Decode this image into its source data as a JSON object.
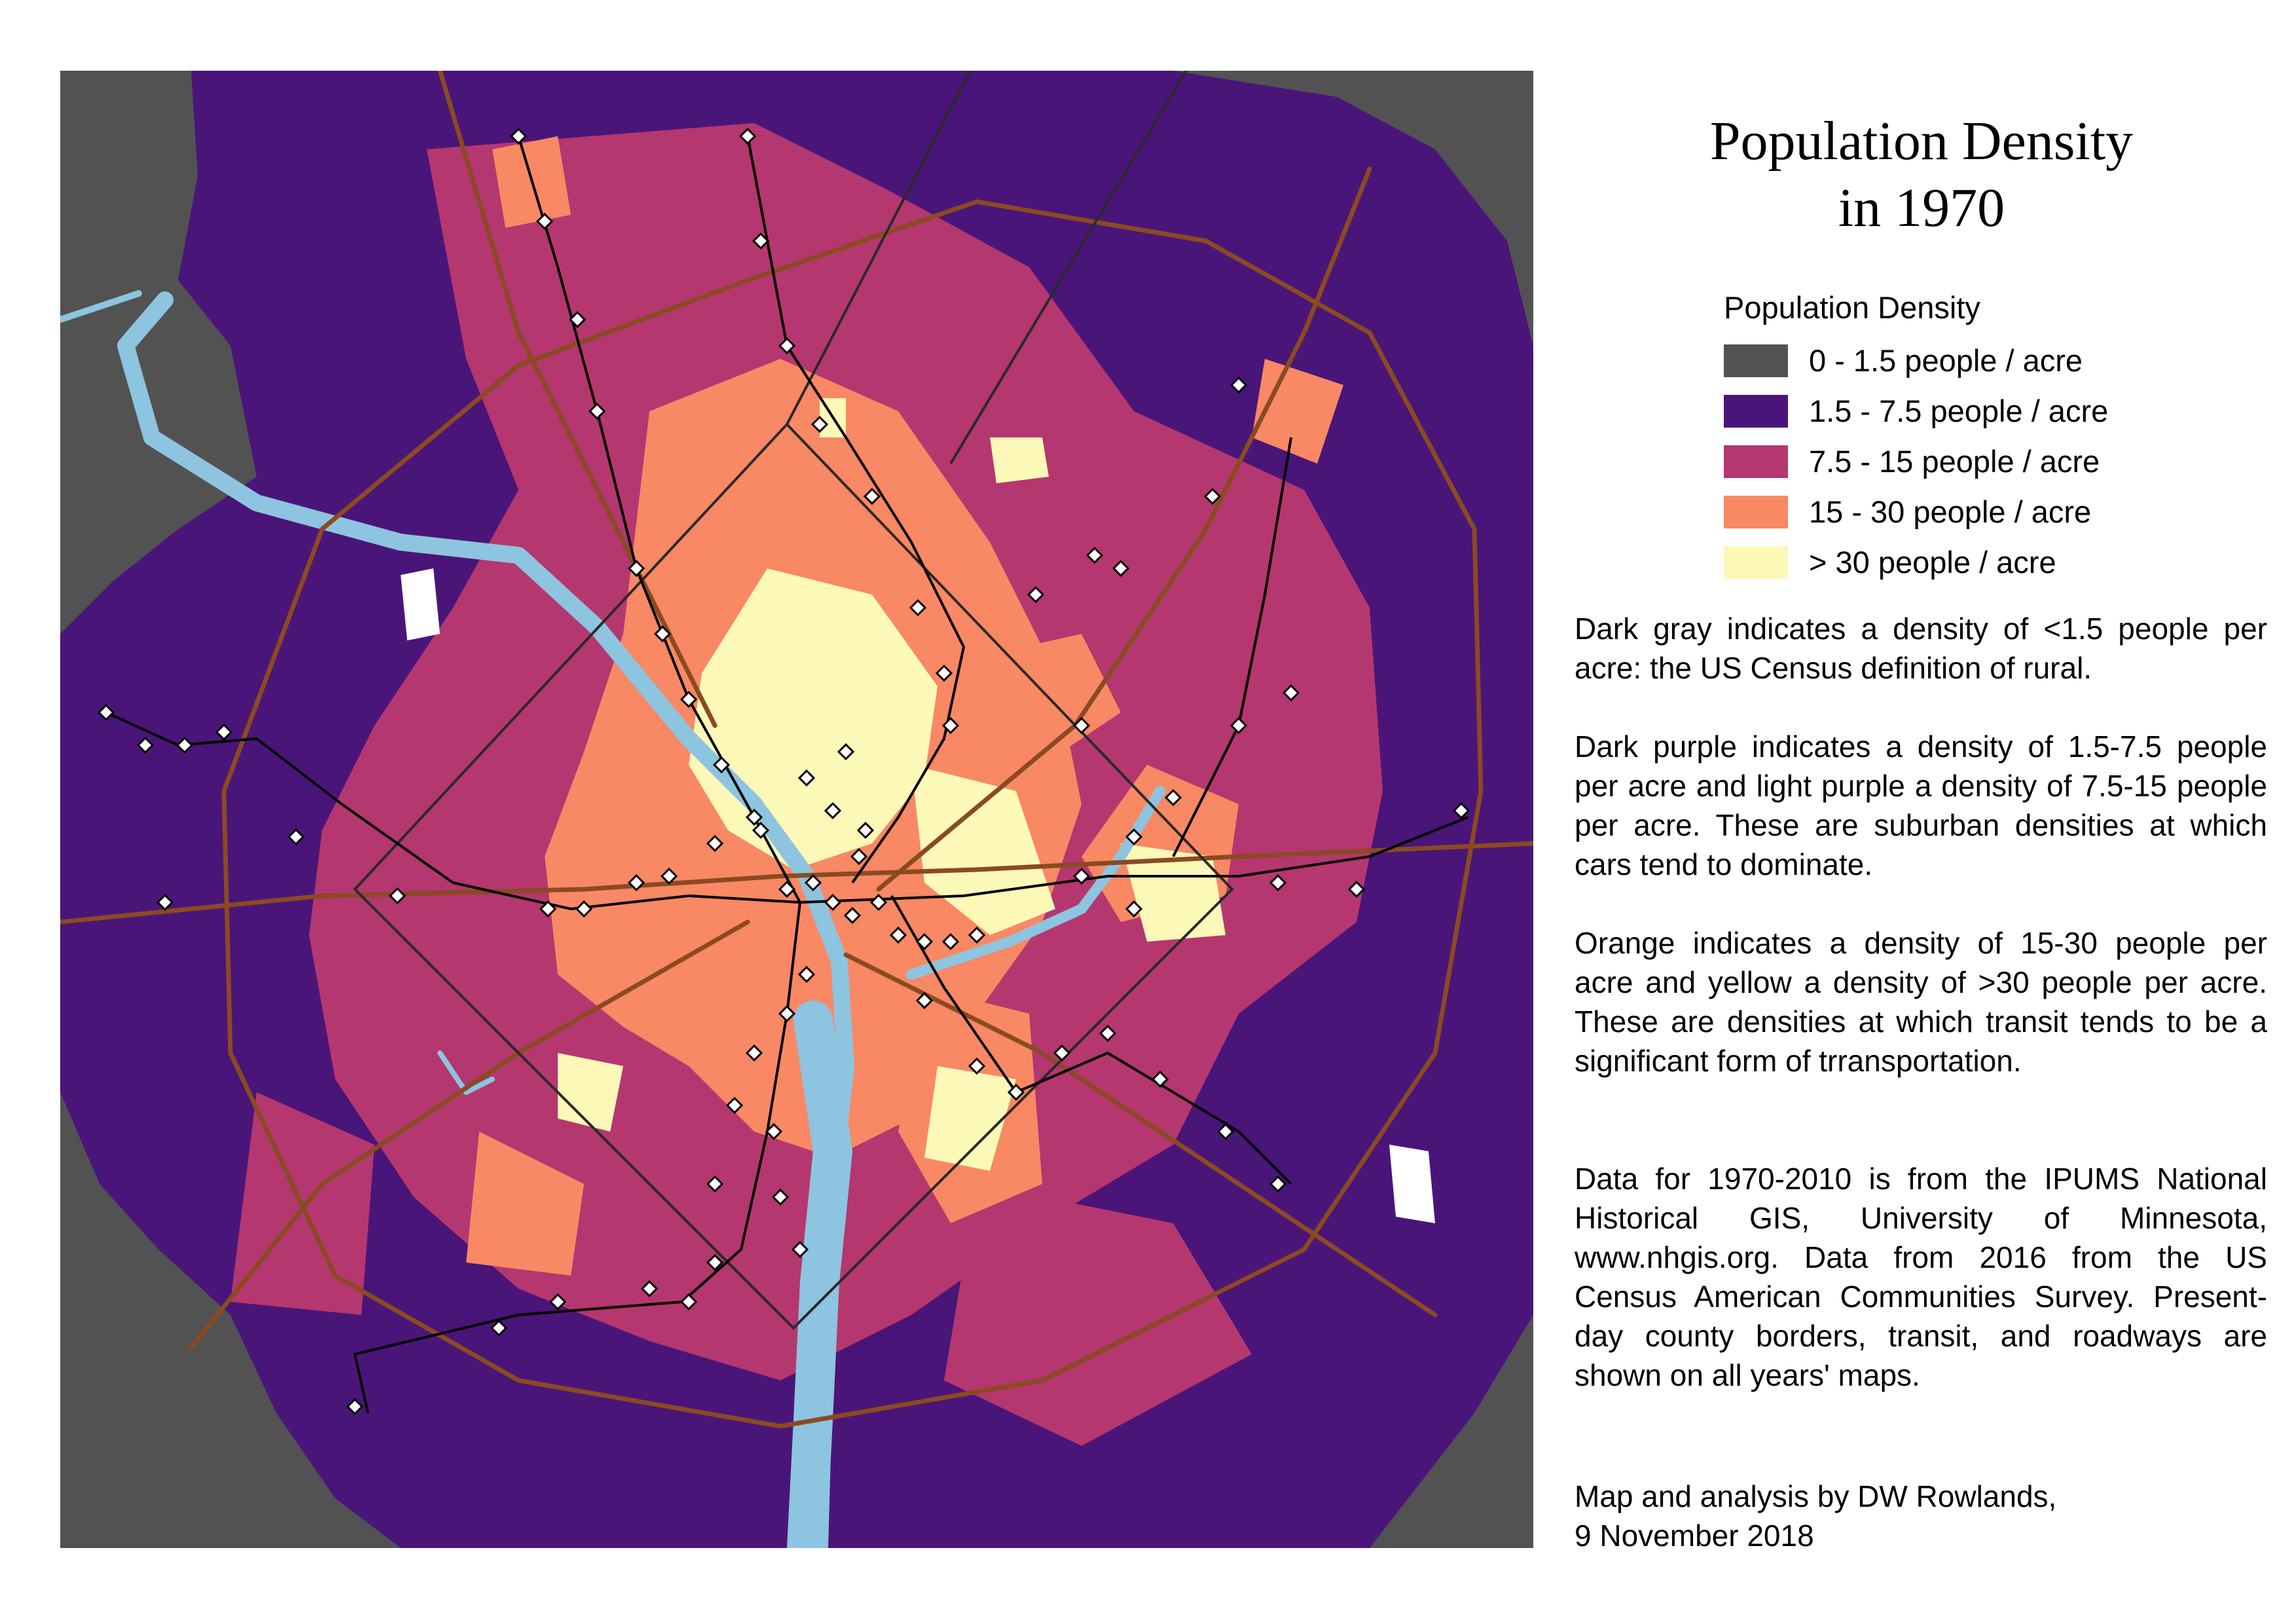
{
  "title": {
    "line1": "Population Density",
    "line2": "in 1970"
  },
  "legend": {
    "heading": "Population Density",
    "classes": [
      {
        "label": "0 - 1.5 people / acre",
        "color": "#525252"
      },
      {
        "label": "1.5 - 7.5 people / acre",
        "color": "#4a1579"
      },
      {
        "label": "7.5 - 15 people / acre",
        "color": "#b5376f"
      },
      {
        "label": "15 - 30 people / acre",
        "color": "#f98864"
      },
      {
        "label": "> 30 people / acre",
        "color": "#fcf8b8"
      }
    ]
  },
  "notes": {
    "rural": "Dark gray indicates a density of <1.5 people per acre: the US Census definition of rural.",
    "suburban": "Dark purple indicates a density of 1.5-7.5 people per acre and light purple a density of 7.5-15 people per acre.  These are suburban densities at which cars tend to dominate.",
    "transit": "Orange indicates a density of 15-30 people per acre and yellow a density of >30 people per acre.  These are densities at which transit tends to be a significant form of trransportation.",
    "source": "Data for 1970-2010 is from the IPUMS National Historical GIS, University of Minnesota, www.nhgis.org.  Data from 2016 from the US Census American Communities Survey. Present-day county borders, transit, and roadways are shown on all years' maps."
  },
  "credit": {
    "line1": "Map and analysis by DW Rowlands,",
    "line2": "9 November 2018"
  },
  "map_colors": {
    "water": "#8dc4df",
    "roads": "#8a4a22",
    "transit": "#000000",
    "station": "#ffffff",
    "borders": "#2a2a2a"
  }
}
